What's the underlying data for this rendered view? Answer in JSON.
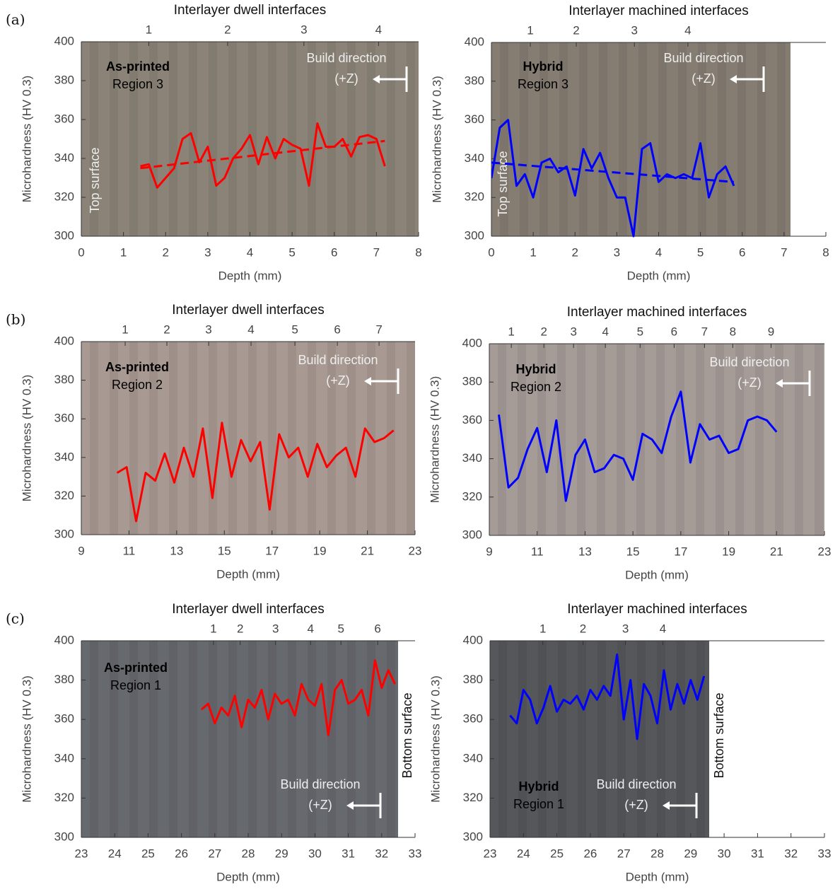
{
  "chart_data": [
    {
      "type": "line",
      "panel_label": "(a)",
      "title": "Interlayer dwell interfaces",
      "label_title": "As-printed",
      "label_region": "Region 3",
      "build_direction": "Build direction",
      "build_direction_z": "(+Z)",
      "surface_label": "Top surface",
      "x_label": "Depth (mm)",
      "y_label": "Microhardness (HV 0.3)",
      "xlim": [
        0,
        8
      ],
      "ylim": [
        300,
        400
      ],
      "xticks": [
        0,
        1,
        2,
        3,
        4,
        5,
        6,
        7,
        8
      ],
      "yticks": [
        300,
        320,
        340,
        360,
        380,
        400
      ],
      "x2ticks": [
        {
          "value": 1.6,
          "label": "1"
        },
        {
          "value": 3.47,
          "label": "2"
        },
        {
          "value": 5.28,
          "label": "3"
        },
        {
          "value": 7.05,
          "label": "4"
        }
      ],
      "series": [
        {
          "color": "#ff0000",
          "x": [
            1.4,
            1.6,
            1.8,
            2.0,
            2.2,
            2.4,
            2.6,
            2.8,
            3.0,
            3.2,
            3.4,
            3.6,
            3.8,
            4.0,
            4.2,
            4.4,
            4.6,
            4.8,
            5.0,
            5.2,
            5.4,
            5.6,
            5.8,
            6.0,
            6.2,
            6.4,
            6.6,
            6.8,
            7.0,
            7.2
          ],
          "values": [
            336,
            337,
            325,
            330,
            335,
            350,
            353,
            338,
            346,
            326,
            330,
            340,
            345,
            352,
            337,
            351,
            340,
            350,
            347,
            345,
            326,
            358,
            346,
            346,
            350,
            341,
            351,
            352,
            350,
            336
          ]
        }
      ],
      "trend": {
        "x": [
          1.4,
          7.2
        ],
        "values": [
          335,
          349
        ]
      }
    },
    {
      "type": "line",
      "title": "Interlayer machined interfaces",
      "label_title": "Hybrid",
      "label_region": "Region 3",
      "build_direction": "Build direction",
      "build_direction_z": "(+Z)",
      "surface_label": "Top surface",
      "x_label": "Depth (mm)",
      "y_label": "Microhardness (HV 0.3)",
      "xlim": [
        0,
        8
      ],
      "ylim": [
        300,
        400
      ],
      "xticks": [
        0,
        1,
        2,
        3,
        4,
        5,
        6,
        7,
        8
      ],
      "yticks": [
        300,
        320,
        340,
        360,
        380,
        400
      ],
      "x2ticks": [
        {
          "value": 0.93,
          "label": "1"
        },
        {
          "value": 2.03,
          "label": "2"
        },
        {
          "value": 3.42,
          "label": "3"
        },
        {
          "value": 4.7,
          "label": "4"
        }
      ],
      "series": [
        {
          "color": "#0000ff",
          "x": [
            0,
            0.2,
            0.4,
            0.6,
            0.8,
            1.0,
            1.2,
            1.4,
            1.6,
            1.8,
            2.0,
            2.2,
            2.4,
            2.6,
            2.8,
            3.0,
            3.2,
            3.4,
            3.6,
            3.8,
            4.0,
            4.2,
            4.4,
            4.6,
            4.8,
            5.0,
            5.2,
            5.4,
            5.6,
            5.8
          ],
          "values": [
            330,
            356,
            360,
            326,
            332,
            320,
            338,
            340,
            333,
            336,
            321,
            345,
            335,
            343,
            330,
            320,
            320,
            300,
            345,
            348,
            328,
            332,
            330,
            332,
            330,
            348,
            320,
            332,
            336,
            326
          ]
        }
      ],
      "trend": {
        "x": [
          0,
          5.8
        ],
        "values": [
          338,
          328
        ]
      }
    },
    {
      "type": "line",
      "panel_label": "(b)",
      "title": "Interlayer dwell interfaces",
      "label_title": "As-printed",
      "label_region": "Region 2",
      "build_direction": "Build direction",
      "build_direction_z": "(+Z)",
      "x_label": "Depth (mm)",
      "y_label": "Microhardness (HV 0.3)",
      "xlim": [
        9,
        23
      ],
      "ylim": [
        300,
        400
      ],
      "xticks": [
        9,
        11,
        13,
        15,
        17,
        19,
        21,
        23
      ],
      "yticks": [
        300,
        320,
        340,
        360,
        380,
        400
      ],
      "x2ticks": [
        {
          "value": 10.84,
          "label": "1"
        },
        {
          "value": 12.59,
          "label": "2"
        },
        {
          "value": 14.34,
          "label": "3"
        },
        {
          "value": 16.12,
          "label": "4"
        },
        {
          "value": 17.96,
          "label": "5"
        },
        {
          "value": 19.74,
          "label": "6"
        },
        {
          "value": 21.49,
          "label": "7"
        }
      ],
      "series": [
        {
          "color": "#ff0000",
          "x": [
            10.5,
            10.9,
            11.3,
            11.7,
            12.1,
            12.5,
            12.9,
            13.3,
            13.7,
            14.1,
            14.5,
            14.9,
            15.3,
            15.7,
            16.1,
            16.5,
            16.9,
            17.3,
            17.7,
            18.1,
            18.5,
            18.9,
            19.3,
            19.7,
            20.1,
            20.5,
            20.9,
            21.3,
            21.7,
            22.1
          ],
          "values": [
            332,
            335,
            307,
            332,
            328,
            342,
            327,
            345,
            330,
            355,
            319,
            358,
            330,
            349,
            338,
            348,
            313,
            352,
            340,
            345,
            330,
            347,
            335,
            341,
            345,
            330,
            355,
            348,
            350,
            354
          ]
        }
      ]
    },
    {
      "type": "line",
      "title": "Interlayer machined interfaces",
      "label_title": "Hybrid",
      "label_region": "Region 2",
      "build_direction": "Build direction",
      "build_direction_z": "(+Z)",
      "x_label": "Depth (mm)",
      "y_label": "Microhardness (HV 0.3)",
      "xlim": [
        9,
        23
      ],
      "ylim": [
        300,
        400
      ],
      "xticks": [
        9,
        11,
        13,
        15,
        17,
        19,
        21,
        23
      ],
      "yticks": [
        300,
        320,
        340,
        360,
        380,
        400
      ],
      "x2ticks": [
        {
          "value": 9.92,
          "label": "1"
        },
        {
          "value": 11.28,
          "label": "2"
        },
        {
          "value": 12.52,
          "label": "3"
        },
        {
          "value": 13.85,
          "label": "4"
        },
        {
          "value": 15.3,
          "label": "5"
        },
        {
          "value": 16.72,
          "label": "6"
        },
        {
          "value": 17.99,
          "label": "7"
        },
        {
          "value": 19.17,
          "label": "8"
        },
        {
          "value": 20.77,
          "label": "9"
        }
      ],
      "series": [
        {
          "color": "#0000ff",
          "x": [
            9.4,
            9.8,
            10.2,
            10.6,
            11.0,
            11.4,
            11.8,
            12.2,
            12.6,
            13.0,
            13.4,
            13.8,
            14.2,
            14.6,
            15.0,
            15.4,
            15.8,
            16.2,
            16.6,
            17.0,
            17.4,
            17.8,
            18.2,
            18.6,
            19.0,
            19.4,
            19.8,
            20.2,
            20.6,
            21.0
          ],
          "values": [
            363,
            325,
            330,
            345,
            356,
            333,
            360,
            318,
            342,
            350,
            333,
            335,
            342,
            340,
            329,
            353,
            350,
            343,
            362,
            375,
            338,
            358,
            350,
            352,
            343,
            345,
            360,
            362,
            360,
            354
          ]
        }
      ]
    },
    {
      "type": "line",
      "panel_label": "(c)",
      "title": "Interlayer dwell interfaces",
      "label_title": "As-printed",
      "label_region": "Region 1",
      "build_direction": "Build direction",
      "build_direction_z": "(+Z)",
      "surface_label": "Bottom surface",
      "x_label": "Depth (mm)",
      "y_label": "Microhardness (HV 0.3)",
      "xlim": [
        23,
        33
      ],
      "ylim": [
        300,
        400
      ],
      "xticks": [
        23,
        24,
        25,
        26,
        27,
        28,
        29,
        30,
        31,
        32,
        33
      ],
      "yticks": [
        300,
        320,
        340,
        360,
        380,
        400
      ],
      "x2ticks": [
        {
          "value": 26.96,
          "label": "1"
        },
        {
          "value": 27.76,
          "label": "2"
        },
        {
          "value": 28.82,
          "label": "3"
        },
        {
          "value": 29.87,
          "label": "4"
        },
        {
          "value": 30.78,
          "label": "5"
        },
        {
          "value": 31.88,
          "label": "6"
        }
      ],
      "series": [
        {
          "color": "#ff0000",
          "x": [
            26.6,
            26.8,
            27.0,
            27.2,
            27.4,
            27.6,
            27.8,
            28.0,
            28.2,
            28.4,
            28.6,
            28.8,
            29.0,
            29.2,
            29.4,
            29.6,
            29.8,
            30.0,
            30.2,
            30.4,
            30.6,
            30.8,
            31.0,
            31.2,
            31.4,
            31.6,
            31.8,
            32.0,
            32.2,
            32.4
          ],
          "values": [
            365,
            368,
            358,
            366,
            362,
            372,
            356,
            370,
            366,
            375,
            360,
            373,
            368,
            370,
            362,
            378,
            370,
            367,
            378,
            352,
            375,
            380,
            368,
            370,
            375,
            362,
            390,
            376,
            385,
            378
          ]
        }
      ]
    },
    {
      "type": "line",
      "title": "Interlayer machined interfaces",
      "label_title": "Hybrid",
      "label_region": "Region 1",
      "build_direction": "Build direction",
      "build_direction_z": "(+Z)",
      "surface_label": "Bottom surface",
      "x_label": "Depth (mm)",
      "y_label": "Microhardness (HV 0.3)",
      "xlim": [
        23,
        33
      ],
      "ylim": [
        300,
        400
      ],
      "xticks": [
        23,
        24,
        25,
        26,
        27,
        28,
        29,
        30,
        31,
        32,
        33
      ],
      "yticks": [
        300,
        320,
        340,
        360,
        380,
        400
      ],
      "x2ticks": [
        {
          "value": 24.58,
          "label": "1"
        },
        {
          "value": 25.78,
          "label": "2"
        },
        {
          "value": 27.05,
          "label": "3"
        },
        {
          "value": 28.17,
          "label": "4"
        }
      ],
      "series": [
        {
          "color": "#0000ff",
          "x": [
            23.6,
            23.8,
            24.0,
            24.2,
            24.4,
            24.6,
            24.8,
            25.0,
            25.2,
            25.4,
            25.6,
            25.8,
            26.0,
            26.2,
            26.4,
            26.6,
            26.8,
            27.0,
            27.2,
            27.4,
            27.6,
            27.8,
            28.0,
            28.2,
            28.4,
            28.6,
            28.8,
            29.0,
            29.2,
            29.4
          ],
          "values": [
            362,
            358,
            375,
            370,
            358,
            366,
            377,
            364,
            370,
            368,
            372,
            365,
            375,
            370,
            377,
            372,
            393,
            360,
            380,
            350,
            378,
            372,
            358,
            385,
            365,
            378,
            368,
            380,
            370,
            382
          ]
        }
      ]
    }
  ]
}
